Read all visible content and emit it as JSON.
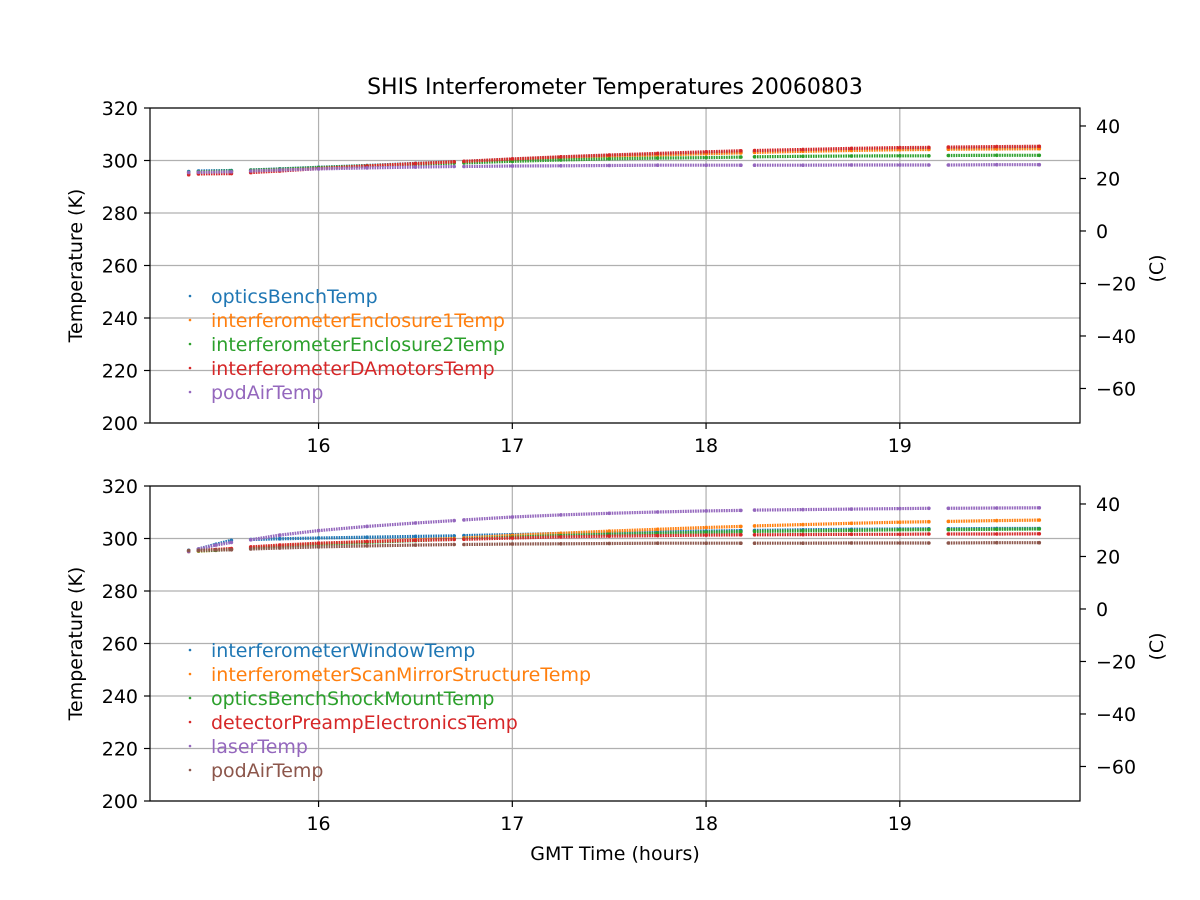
{
  "figure_title": "SHIS Interferometer Temperatures 20060803",
  "chart_data": [
    {
      "type": "scatter",
      "title": "SHIS Interferometer Temperatures 20060803",
      "xlabel": "",
      "ylabel": "Temperature (K)",
      "y2label": "(C)",
      "xlim": [
        15.13,
        19.93
      ],
      "ylim": [
        200,
        320
      ],
      "y2lim": [
        -73.15,
        46.85
      ],
      "xticks": [
        16,
        17,
        18,
        19
      ],
      "yticks": [
        200,
        220,
        240,
        260,
        280,
        300,
        320
      ],
      "y2ticks": [
        -60,
        -40,
        -20,
        0,
        20,
        40
      ],
      "grid": true,
      "legend_position": "lower-left",
      "x": [
        15.33,
        15.38,
        15.55,
        15.65,
        15.8,
        16.0,
        16.25,
        16.5,
        16.7,
        16.75,
        17.0,
        17.25,
        17.5,
        17.75,
        18.0,
        18.18,
        18.25,
        18.5,
        18.75,
        19.0,
        19.15,
        19.25,
        19.5,
        19.72
      ],
      "gaps_after": [
        0,
        2,
        8,
        15,
        20
      ],
      "series": [
        {
          "name": "opticsBenchTemp",
          "color": "#1f77b4",
          "values": [
            295.8,
            296.0,
            296.2,
            296.4,
            296.8,
            297.4,
            298.1,
            298.9,
            299.5,
            299.6,
            300.5,
            301.2,
            301.9,
            302.4,
            302.9,
            303.2,
            303.4,
            303.8,
            304.1,
            304.4,
            304.5,
            304.6,
            304.8,
            304.9
          ]
        },
        {
          "name": "interferometerEnclosure1Temp",
          "color": "#ff7f0e",
          "values": [
            295.2,
            295.4,
            295.6,
            296.0,
            296.5,
            297.1,
            297.9,
            298.7,
            299.3,
            299.4,
            300.3,
            301.0,
            301.6,
            302.1,
            302.6,
            302.9,
            303.1,
            303.5,
            303.8,
            304.1,
            304.2,
            304.3,
            304.4,
            304.5
          ]
        },
        {
          "name": "interferometerEnclosure2Temp",
          "color": "#2ca02c",
          "values": [
            295.5,
            295.7,
            296.0,
            296.3,
            296.7,
            297.3,
            298.0,
            298.6,
            299.0,
            299.1,
            299.7,
            300.2,
            300.6,
            300.9,
            301.1,
            301.3,
            301.4,
            301.6,
            301.7,
            301.8,
            301.8,
            301.9,
            302.0,
            302.0
          ]
        },
        {
          "name": "interferometerDAmotorsTemp",
          "color": "#d62728",
          "values": [
            294.6,
            294.9,
            295.0,
            295.4,
            296.0,
            296.9,
            297.9,
            298.8,
            299.5,
            299.7,
            300.6,
            301.4,
            302.1,
            302.7,
            303.3,
            303.7,
            303.8,
            304.2,
            304.6,
            304.9,
            305.0,
            305.1,
            305.3,
            305.4
          ]
        },
        {
          "name": "podAirTemp",
          "color": "#9467bd",
          "values": [
            295.4,
            295.5,
            295.7,
            296.0,
            296.4,
            296.8,
            297.2,
            297.5,
            297.7,
            297.7,
            297.9,
            298.0,
            298.1,
            298.2,
            298.2,
            298.2,
            298.2,
            298.2,
            298.3,
            298.3,
            298.3,
            298.3,
            298.4,
            298.4
          ]
        }
      ]
    },
    {
      "type": "scatter",
      "title": "",
      "xlabel": "GMT Time (hours)",
      "ylabel": "Temperature (K)",
      "y2label": "(C)",
      "xlim": [
        15.13,
        19.93
      ],
      "ylim": [
        200,
        320
      ],
      "y2lim": [
        -73.15,
        46.85
      ],
      "xticks": [
        16,
        17,
        18,
        19
      ],
      "yticks": [
        200,
        220,
        240,
        260,
        280,
        300,
        320
      ],
      "y2ticks": [
        -60,
        -40,
        -20,
        0,
        20,
        40
      ],
      "grid": true,
      "legend_position": "lower-left",
      "x": [
        15.33,
        15.38,
        15.47,
        15.55,
        15.65,
        15.8,
        16.0,
        16.25,
        16.5,
        16.7,
        16.75,
        17.0,
        17.25,
        17.5,
        17.75,
        18.0,
        18.18,
        18.25,
        18.5,
        18.75,
        19.0,
        19.15,
        19.25,
        19.5,
        19.72
      ],
      "gaps_after": [
        0,
        3,
        9,
        16,
        21
      ],
      "series": [
        {
          "name": "interferometerWindowTemp",
          "color": "#1f77b4",
          "values": [
            295.5,
            296.0,
            297.8,
            299.3,
            299.6,
            299.9,
            300.2,
            300.5,
            300.8,
            301.0,
            301.1,
            301.5,
            301.9,
            302.2,
            302.5,
            302.8,
            303.0,
            303.1,
            303.3,
            303.5,
            303.6,
            303.7,
            303.7,
            303.8,
            303.8
          ]
        },
        {
          "name": "interferometerScanMirrorStructureTemp",
          "color": "#ff7f0e",
          "values": [
            295.0,
            295.2,
            295.5,
            296.0,
            296.5,
            297.2,
            298.0,
            298.8,
            299.5,
            300.0,
            300.2,
            301.2,
            302.0,
            302.8,
            303.5,
            304.2,
            304.6,
            304.8,
            305.3,
            305.8,
            306.2,
            306.4,
            306.5,
            306.8,
            307.0
          ]
        },
        {
          "name": "opticsBenchShockMountTemp",
          "color": "#2ca02c",
          "values": [
            295.2,
            295.3,
            295.5,
            295.8,
            296.3,
            297.0,
            297.8,
            298.5,
            299.2,
            299.7,
            299.8,
            300.5,
            301.1,
            301.6,
            302.0,
            302.4,
            302.6,
            302.7,
            302.9,
            303.1,
            303.3,
            303.4,
            303.4,
            303.5,
            303.6
          ]
        },
        {
          "name": "detectorPreampElectronicsTemp",
          "color": "#d62728",
          "values": [
            295.3,
            295.5,
            295.8,
            296.2,
            296.8,
            297.5,
            298.2,
            298.8,
            299.3,
            299.6,
            299.7,
            300.2,
            300.6,
            300.9,
            301.1,
            301.3,
            301.4,
            301.4,
            301.5,
            301.6,
            301.6,
            301.7,
            301.7,
            301.7,
            301.8
          ]
        },
        {
          "name": "laserTemp",
          "color": "#9467bd",
          "values": [
            295.0,
            296.0,
            297.5,
            298.5,
            299.5,
            301.3,
            303.0,
            304.6,
            305.9,
            306.8,
            307.1,
            308.2,
            309.0,
            309.6,
            310.1,
            310.5,
            310.7,
            310.8,
            311.0,
            311.2,
            311.4,
            311.5,
            311.5,
            311.6,
            311.7
          ]
        },
        {
          "name": "podAirTemp",
          "color": "#8c564b",
          "values": [
            295.4,
            295.5,
            295.6,
            295.7,
            296.0,
            296.4,
            296.8,
            297.2,
            297.5,
            297.7,
            297.7,
            297.9,
            298.0,
            298.1,
            298.2,
            298.2,
            298.2,
            298.2,
            298.2,
            298.3,
            298.3,
            298.3,
            298.3,
            298.4,
            298.4
          ]
        }
      ]
    }
  ]
}
